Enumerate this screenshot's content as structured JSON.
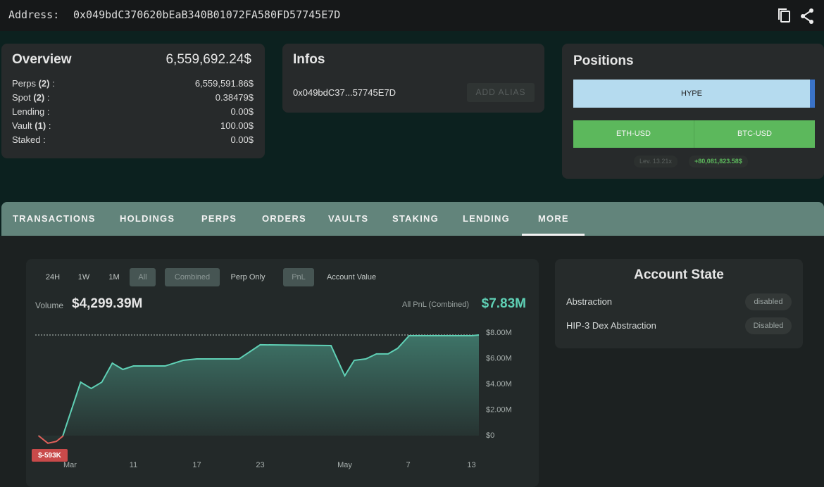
{
  "header": {
    "address_label": "Address:",
    "address": "0x049bdC370620bEaB340B01072FA580FD57745E7D"
  },
  "overview": {
    "title": "Overview",
    "total": "6,559,692.24$",
    "separator": ":",
    "rows": [
      {
        "label": "Perps",
        "count": "(2)",
        "value": "6,559,591.86$"
      },
      {
        "label": "Spot",
        "count": "(2)",
        "value": "0.38479$"
      },
      {
        "label": "Lending",
        "value": "0.00$"
      },
      {
        "label": "Vault",
        "count": "(1)",
        "value": "100.00$"
      },
      {
        "label": "Staked",
        "value": "0.00$"
      }
    ]
  },
  "infos": {
    "title": "Infos",
    "address": "0x049bdC37...57745E7D",
    "button": "ADD ALIAS"
  },
  "positions": {
    "title": "Positions",
    "bars": [
      "HYPE",
      "ETH-USD",
      "BTC-USD"
    ],
    "leverage": "Lev. 13.21x",
    "pnl": "+80,081,823.58$"
  },
  "tabs": [
    "TRANSACTIONS",
    "HOLDINGS",
    "PERPS",
    "ORDERS",
    "VAULTS",
    "STAKING",
    "LENDING",
    "MORE"
  ],
  "controls": {
    "ranges": [
      "24H",
      "1W",
      "1M",
      "All"
    ],
    "modes": [
      "Combined",
      "Perp Only"
    ],
    "metrics": [
      "PnL",
      "Account Value"
    ]
  },
  "stats": {
    "volume_label": "Volume",
    "volume": "$4,299.39M",
    "pnl_label": "All PnL (Combined)",
    "pnl": "$7.83M"
  },
  "chart_data": {
    "type": "area",
    "color": "#5fd0b5",
    "negative_color": "#e0605a",
    "min_label": "$-593K",
    "x": [
      0,
      0.9,
      1.7,
      2.3,
      4,
      5,
      6,
      7,
      8,
      9,
      12,
      13.7,
      15,
      19,
      21,
      27.7,
      29,
      29.9,
      31,
      32,
      33.1,
      34,
      35.1,
      41,
      41.7
    ],
    "series": [
      {
        "name": "PnL",
        "values": [
          0,
          -0.593,
          -0.45,
          -0.05,
          4.16,
          3.67,
          4.16,
          5.64,
          5.15,
          5.42,
          5.42,
          5.86,
          5.97,
          5.97,
          7.07,
          7.01,
          4.66,
          5.86,
          5.97,
          6.36,
          6.36,
          6.79,
          7.78,
          7.78,
          7.83
        ]
      }
    ],
    "xlim": [
      -0.3,
      41.7
    ],
    "xticks": [
      {
        "value": 3,
        "label": "Mar"
      },
      {
        "value": 9,
        "label": "11"
      },
      {
        "value": 15,
        "label": "17"
      },
      {
        "value": 21,
        "label": "23"
      },
      {
        "value": 29,
        "label": "May"
      },
      {
        "value": 35,
        "label": "7"
      },
      {
        "value": 41,
        "label": "13"
      }
    ],
    "ylim": [
      -1.15,
      8.6
    ],
    "yticks": [
      {
        "value": 0,
        "label": "$0"
      },
      {
        "value": 2,
        "label": "$2.00M"
      },
      {
        "value": 4,
        "label": "$4.00M"
      },
      {
        "value": 6,
        "label": "$6.00M"
      },
      {
        "value": 8,
        "label": "$8.00M"
      }
    ]
  },
  "account_state": {
    "title": "Account State",
    "rows": [
      {
        "label": "Abstraction",
        "status": "disabled"
      },
      {
        "label": "HIP-3 Dex Abstraction",
        "status": "Disabled"
      }
    ]
  }
}
